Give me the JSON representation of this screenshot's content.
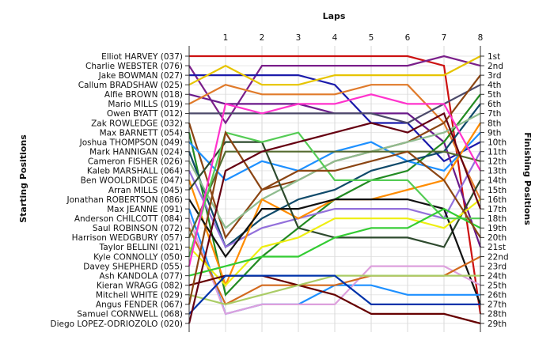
{
  "chart_data": {
    "type": "line",
    "title": "",
    "xlabel": "Laps",
    "ylabel_left": "Starting Positions",
    "ylabel_right": "Finishing Positions",
    "x": [
      0,
      1,
      2,
      3,
      4,
      5,
      6,
      7,
      8
    ],
    "x_tick_labels": [
      "1",
      "2",
      "3",
      "4",
      "5",
      "6",
      "7",
      "8"
    ],
    "ylim": [
      1,
      29
    ],
    "y_inverted": true,
    "grid": true,
    "start_labels": [
      "Elliot HARVEY (037)",
      "Charlie WEBSTER (076)",
      "Jake BOWMAN (027)",
      "Callum BRADSHAW (025)",
      "Alfie BROWN (018)",
      "Mario MILLS (019)",
      "Owen BYATT (012)",
      "Zak ROWLEDGE (032)",
      "Max BARNETT (054)",
      "Joshua THOMPSON (049)",
      "Mark HANNIGAN (024)",
      "Cameron FISHER (026)",
      "Kaleb MARSHALL (064)",
      "Ben WOOLDRIDGE (047)",
      "Arran MILLS (045)",
      "Jonathan ROBERTSON (086)",
      "Max JEANNE (091)",
      "Anderson CHILCOTT (084)",
      "Saul ROBINSON (072)",
      "Harrison WEDGBURY (057)",
      "Taylor BELLINI (021)",
      "Kyle CONNOLLY (050)",
      "Davey SHEPHERD (055)",
      "Ash KANDOLA (077)",
      "Kieran WRAGG (082)",
      "Mitchell WHITE (029)",
      "Angus FENDER (067)",
      "Samuel CORNWELL (068)",
      "Diego LOPEZ-ODRIOZOLO (020)"
    ],
    "finish_labels": [
      "1st",
      "2nd",
      "3rd",
      "4th",
      "5th",
      "6th",
      "7th",
      "8th",
      "9th",
      "10th",
      "11th",
      "12th",
      "13th",
      "14th",
      "15th",
      "16th",
      "17th",
      "18th",
      "19th",
      "20th",
      "21st",
      "22nd",
      "23rd",
      "24th",
      "25th",
      "26th",
      "27th",
      "28th",
      "29th"
    ],
    "series": [
      {
        "color": "#cc1111",
        "values": [
          1,
          1,
          1,
          1,
          1,
          1,
          1,
          2,
          28
        ]
      },
      {
        "color": "#7a1f8a",
        "values": [
          2,
          8,
          2,
          2,
          2,
          2,
          2,
          1,
          2
        ]
      },
      {
        "color": "#1a1aaa",
        "values": [
          3,
          3,
          3,
          3,
          4,
          8,
          8,
          12,
          10
        ]
      },
      {
        "color": "#e6c400",
        "values": [
          4,
          2,
          4,
          4,
          3,
          3,
          3,
          3,
          1
        ]
      },
      {
        "color": "#6a1a8a",
        "values": [
          5,
          6,
          6,
          6,
          7,
          7,
          7,
          10,
          21
        ]
      },
      {
        "color": "#e07a2a",
        "values": [
          6,
          4,
          5,
          5,
          5,
          4,
          4,
          8,
          16
        ]
      },
      {
        "color": "#4c4a6a",
        "values": [
          7,
          7,
          7,
          7,
          7,
          7,
          8,
          6,
          4
        ]
      },
      {
        "color": "#8b4513",
        "values": [
          8,
          20,
          15,
          14,
          12,
          11,
          10,
          8,
          3
        ]
      },
      {
        "color": "#228b22",
        "values": [
          9,
          26,
          22,
          19,
          16,
          14,
          13,
          10,
          5
        ]
      },
      {
        "color": "#1e90ff",
        "values": [
          10,
          14,
          12,
          13,
          11,
          10,
          12,
          13,
          9
        ]
      },
      {
        "color": "#0f4a6a",
        "values": [
          11,
          21,
          18,
          16,
          15,
          13,
          12,
          11,
          6
        ]
      },
      {
        "color": "#8fbc8f",
        "values": [
          12,
          19,
          16,
          14,
          12,
          11,
          10,
          9,
          7
        ]
      },
      {
        "color": "#9370db",
        "values": [
          13,
          21,
          19,
          18,
          17,
          17,
          17,
          18,
          11
        ]
      },
      {
        "color": "#ff8c00",
        "values": [
          14,
          25,
          16,
          18,
          16,
          16,
          15,
          14,
          8
        ]
      },
      {
        "color": "#2e4a2e",
        "values": [
          15,
          10,
          10,
          19,
          20,
          20,
          20,
          21,
          14
        ]
      },
      {
        "color": "#111111",
        "values": [
          16,
          22,
          17,
          17,
          16,
          16,
          16,
          17,
          27
        ]
      },
      {
        "color": "#1e90ff",
        "values": [
          17,
          28,
          27,
          27,
          25,
          25,
          26,
          26,
          26
        ]
      },
      {
        "color": "#dda0dd",
        "values": [
          18,
          28,
          27,
          27,
          27,
          23,
          23,
          23,
          25
        ]
      },
      {
        "color": "#d2691e",
        "values": [
          19,
          27,
          25,
          25,
          25,
          24,
          24,
          24,
          22
        ]
      },
      {
        "color": "#556b2f",
        "values": [
          20,
          11,
          11,
          11,
          11,
          11,
          11,
          11,
          12
        ]
      },
      {
        "color": "#eeee11",
        "values": [
          21,
          25,
          21,
          20,
          18,
          18,
          18,
          19,
          16
        ]
      },
      {
        "color": "#55cc55",
        "values": [
          22,
          9,
          10,
          9,
          14,
          14,
          14,
          18,
          18
        ]
      },
      {
        "color": "#ff33cc",
        "values": [
          23,
          6,
          7,
          6,
          6,
          5,
          6,
          6,
          13
        ]
      },
      {
        "color": "#33cc33",
        "values": [
          24,
          23,
          22,
          22,
          20,
          19,
          19,
          17,
          19
        ]
      },
      {
        "color": "#660000",
        "values": [
          25,
          24,
          24,
          25,
          26,
          28,
          28,
          28,
          29
        ]
      },
      {
        "color": "#aacc66",
        "values": [
          26,
          27,
          26,
          25,
          24,
          24,
          24,
          24,
          24
        ]
      },
      {
        "color": "#8b4513",
        "values": [
          27,
          9,
          15,
          13,
          13,
          12,
          11,
          14,
          20
        ]
      },
      {
        "color": "#0033aa",
        "values": [
          28,
          24,
          24,
          24,
          24,
          27,
          27,
          27,
          27
        ]
      },
      {
        "color": "#660011",
        "values": [
          29,
          13,
          11,
          10,
          9,
          8,
          9,
          7,
          17
        ]
      }
    ]
  }
}
